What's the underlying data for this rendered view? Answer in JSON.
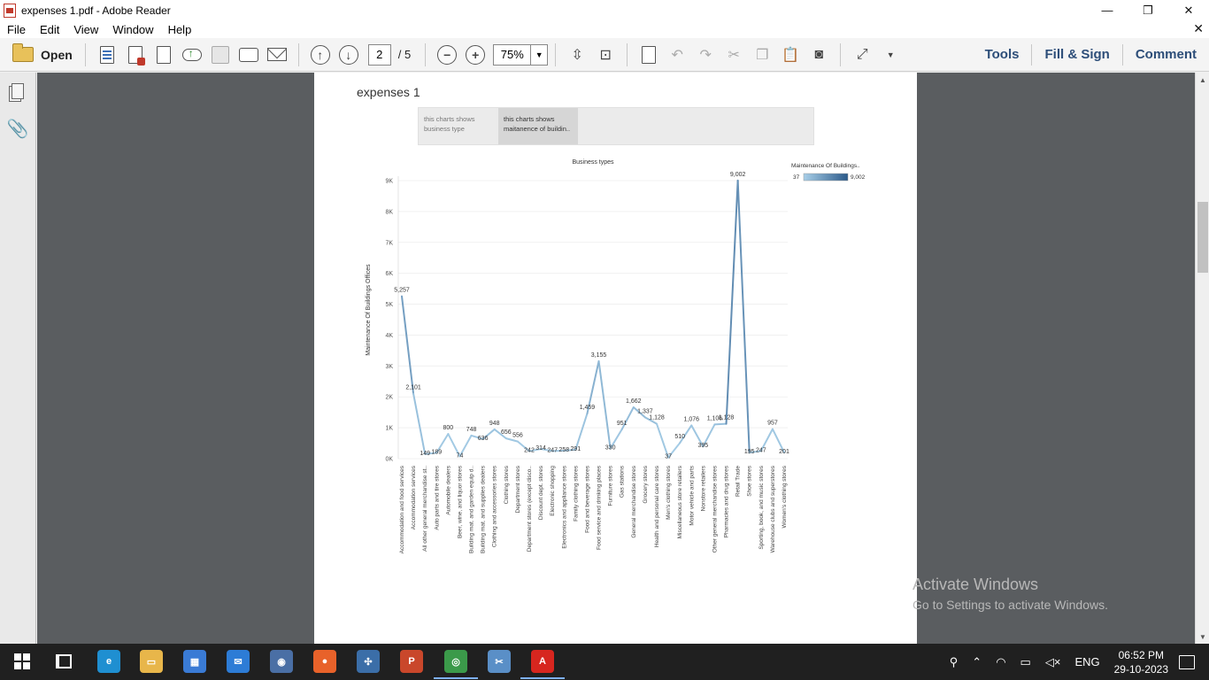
{
  "window": {
    "title": "expenses 1.pdf - Adobe Reader",
    "controls": {
      "minimize": "—",
      "maximize": "❐",
      "close": "✕"
    }
  },
  "menu": {
    "items": [
      "File",
      "Edit",
      "View",
      "Window",
      "Help"
    ],
    "close": "✕"
  },
  "toolbar": {
    "open_label": "Open",
    "page_current": "2",
    "page_total": "/ 5",
    "zoom": "75%",
    "links": [
      "Tools",
      "Fill & Sign",
      "Comment"
    ]
  },
  "document": {
    "title": "expenses 1",
    "tabs": [
      {
        "label": "this charts shows business type"
      },
      {
        "label": "this charts shows maitanence of buildin.."
      }
    ]
  },
  "chart_data": {
    "type": "line",
    "title": "Business types",
    "xlabel": "",
    "ylabel": "Maintenance Of Buildings Offices",
    "ylim": [
      0,
      9000
    ],
    "ytick_labels": [
      "0K",
      "1K",
      "2K",
      "3K",
      "4K",
      "5K",
      "6K",
      "7K",
      "8K",
      "9K"
    ],
    "grid": true,
    "legend": {
      "title": "Maintenance Of Buildings..",
      "min": "37",
      "max": "9,002",
      "placement": "top-right"
    },
    "colors": {
      "light": "#a8cfe8",
      "dark": "#2b5a8a"
    },
    "categories": [
      "Accommodation and food services",
      "Accommodation services",
      "All other general merchandise st..",
      "Auto parts and tire stores",
      "Automobile dealers",
      "Beer, wine, and liquor stores",
      "Building mat. and garden equip d..",
      "Building mat. and supplies dealers",
      "Clothing and accessories stores",
      "Clothing stores",
      "Department stores",
      "Department stores (except disco..",
      "Discount dept. stores",
      "Electronic shopping",
      "Electronics and appliance stores",
      "Family clothing stores",
      "Food and beverage stores",
      "Food service and drinking places",
      "Furniture stores",
      "Gas stations",
      "General merchandise stores",
      "Grocery stores",
      "Health and personal care stores",
      "Men's clothing stores",
      "Miscellaneous store retailers",
      "Motor vehicle and parts",
      "Nonstore retailers",
      "Other general merchandise stores",
      "Pharmacies and drug stores",
      "Retail Trade",
      "Shoe stores",
      "Sporting, book, and music stores",
      "Warehouse clubs and superstores",
      "Women's clothing stores"
    ],
    "values": [
      5257,
      2101,
      149,
      189,
      800,
      74,
      748,
      636,
      948,
      656,
      556,
      242,
      314,
      247,
      258,
      291,
      1459,
      3155,
      330,
      951,
      1662,
      1337,
      1128,
      37,
      510,
      1076,
      395,
      1106,
      1128,
      9002,
      195,
      247,
      957,
      201
    ],
    "value_labels": [
      "5,257",
      "2,101",
      "149",
      "189",
      "800",
      "74",
      "748",
      "636",
      "948",
      "656",
      "556",
      "242",
      "314",
      "247",
      "258",
      "291",
      "1,459",
      "3,155",
      "330",
      "951",
      "1,662",
      "1,337",
      "1,128",
      "37",
      "510",
      "1,076",
      "395",
      "1,106",
      "1,128",
      "9,002",
      "195",
      "247",
      "957",
      "201"
    ]
  },
  "watermark": {
    "line1": "Activate Windows",
    "line2": "Go to Settings to activate Windows."
  },
  "taskbar": {
    "apps": [
      {
        "name": "edge-icon",
        "color": "#1f8fd1",
        "glyph": "e"
      },
      {
        "name": "file-explorer-icon",
        "color": "#e8b64a",
        "glyph": "▭"
      },
      {
        "name": "store-icon",
        "color": "#3a7bd5",
        "glyph": "▦"
      },
      {
        "name": "mail-icon",
        "color": "#2d7cd6",
        "glyph": "✉"
      },
      {
        "name": "app-icon",
        "color": "#4a6fa5",
        "glyph": "◉"
      },
      {
        "name": "firefox-icon",
        "color": "#e8622a",
        "glyph": "●"
      },
      {
        "name": "tableau-icon",
        "color": "#3b6ea8",
        "glyph": "✣"
      },
      {
        "name": "powerpoint-icon",
        "color": "#c9472b",
        "glyph": "P"
      },
      {
        "name": "chrome-icon",
        "color": "#3b9a4a",
        "glyph": "◎"
      },
      {
        "name": "snip-icon",
        "color": "#5a8fc7",
        "glyph": "✂"
      },
      {
        "name": "acrobat-icon",
        "color": "#d7261f",
        "glyph": "A"
      }
    ],
    "tray": {
      "lang": "ENG",
      "time": "06:52 PM",
      "date": "29-10-2023"
    }
  }
}
